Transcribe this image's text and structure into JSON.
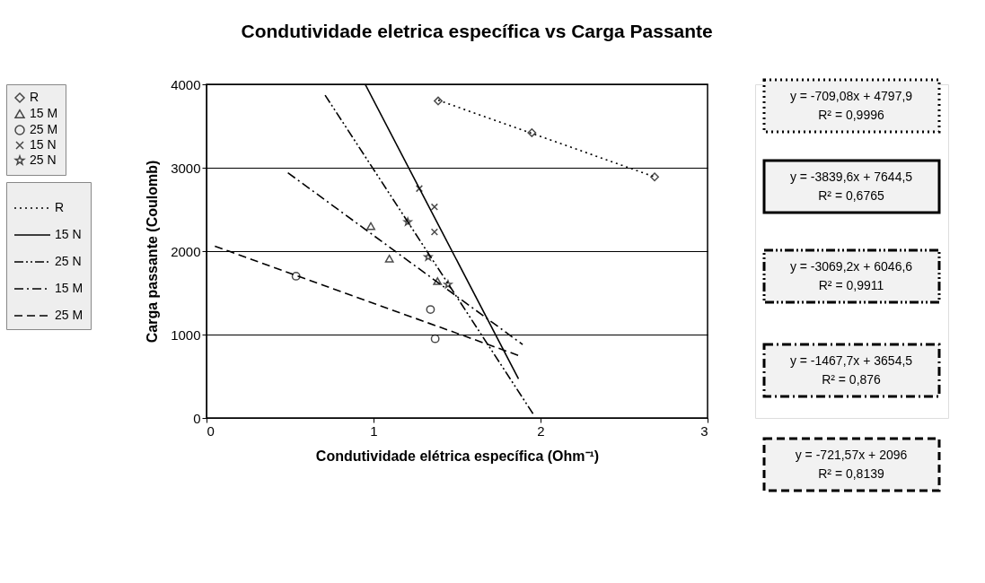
{
  "chart_data": {
    "type": "scatter",
    "title": "Condutividade eletrica específica vs Carga Passante",
    "xlabel": "Condutividade elétrica específica (Ohm⁻¹)",
    "ylabel": "Carga passante (Coulomb)",
    "xlim": [
      0,
      3
    ],
    "xticks": [
      0,
      1,
      2,
      3
    ],
    "ylim": [
      0,
      4000
    ],
    "yticks": [
      0,
      1000,
      2000,
      3000,
      4000
    ],
    "grid": "y",
    "legend": "left",
    "series": [
      {
        "name": "R",
        "marker": "diamond",
        "color": "#000000",
        "x": [
          1.387,
          1.948,
          2.683
        ],
        "values": [
          3800,
          3420,
          2890
        ]
      },
      {
        "name": "15 M",
        "marker": "triangle",
        "color": "#000000",
        "x": [
          0.984,
          1.095,
          1.383
        ],
        "values": [
          2300,
          1910,
          1640
        ]
      },
      {
        "name": "25 M",
        "marker": "circle",
        "color": "#000000",
        "x": [
          0.536,
          1.341,
          1.369
        ],
        "values": [
          1700,
          1300,
          950
        ]
      },
      {
        "name": "15 N",
        "marker": "cross",
        "color": "#000000",
        "x": [
          1.274,
          1.365,
          1.365
        ],
        "values": [
          2750,
          2530,
          2230
        ]
      },
      {
        "name": "25 N",
        "marker": "star",
        "color": "#000000",
        "x": [
          1.205,
          1.327,
          1.446
        ],
        "values": [
          2350,
          1930,
          1600
        ]
      },
      {
        "name": "R",
        "type": "line",
        "line_style": "dotted",
        "color": "#000000",
        "x": [
          1.387,
          2.683
        ],
        "values": [
          3810,
          2890
        ]
      },
      {
        "name": "15 N",
        "type": "line",
        "line_style": "solid",
        "color": "#000000",
        "x": [
          0.95,
          1.868
        ],
        "values": [
          4000,
          470
        ]
      },
      {
        "name": "25 N",
        "type": "line",
        "line_style": "dashdotdot",
        "color": "#000000",
        "x": [
          0.71,
          1.955
        ],
        "values": [
          3870,
          50
        ]
      },
      {
        "name": "15 M",
        "type": "line",
        "line_style": "dashdot",
        "color": "#000000",
        "x": [
          0.487,
          1.893
        ],
        "values": [
          2940,
          880
        ]
      },
      {
        "name": "25 M",
        "type": "line",
        "line_style": "dashed",
        "color": "#000000",
        "x": [
          0.05,
          1.881
        ],
        "values": [
          2060,
          740
        ]
      }
    ],
    "annotations": [
      "y = -709,08x + 4797,9",
      "R² = 0,9996",
      "y = -3839,6x + 7644,5",
      "R² = 0,6765",
      "y = -3069,2x + 6046,6",
      "R² = 0,9911",
      "y = -1467,7x + 3654,5",
      "R² = 0,876",
      "y = -721,57x + 2096",
      "R² = 0,8139"
    ]
  }
}
